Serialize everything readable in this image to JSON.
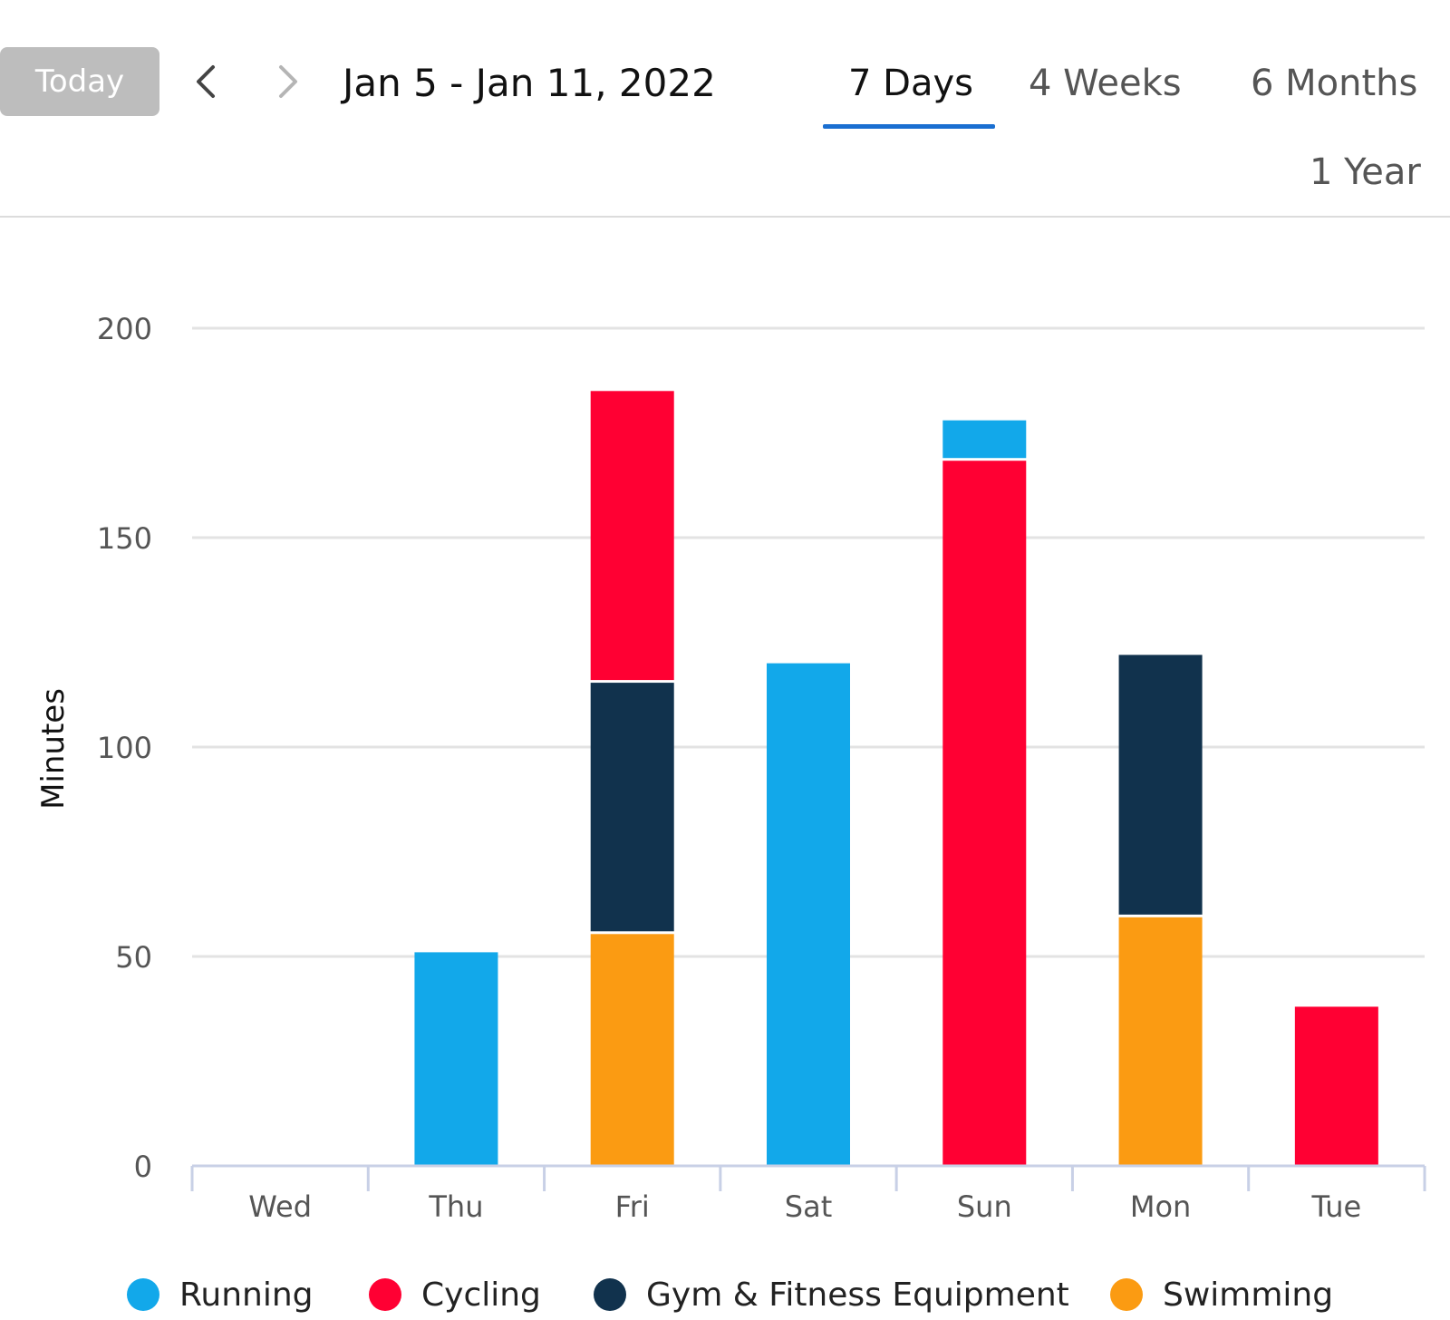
{
  "toolbar": {
    "today_label": "Today",
    "date_range": "Jan 5 - Jan 11, 2022",
    "prev_icon": "chevron-left-icon",
    "next_icon": "chevron-right-icon"
  },
  "tabs": [
    {
      "label": "7 Days",
      "active": true
    },
    {
      "label": "4 Weeks",
      "active": false
    },
    {
      "label": "6 Months",
      "active": false
    },
    {
      "label": "1 Year",
      "active": false
    }
  ],
  "colors": {
    "active_tab_underline": "#1a6fd1",
    "today_button": "#bdbdbd"
  },
  "chart_data": {
    "type": "bar",
    "stacked": true,
    "title": "",
    "xlabel": "",
    "ylabel": "Minutes",
    "ylim": [
      0,
      200
    ],
    "yticks": [
      0,
      50,
      100,
      150,
      200
    ],
    "grid": true,
    "legend_position": "bottom",
    "categories": [
      "Wed",
      "Thu",
      "Fri",
      "Sat",
      "Sun",
      "Mon",
      "Tue"
    ],
    "series": [
      {
        "name": "Swimming",
        "color": "#fb9b12",
        "values": [
          0,
          0,
          56,
          0,
          0,
          60,
          0
        ]
      },
      {
        "name": "Gym & Fitness Equipment",
        "color": "#11324d",
        "values": [
          0,
          0,
          60,
          0,
          0,
          62,
          0
        ]
      },
      {
        "name": "Cycling",
        "color": "#ff0033",
        "values": [
          0,
          0,
          69,
          0,
          169,
          0,
          38
        ]
      },
      {
        "name": "Running",
        "color": "#12a8ea",
        "values": [
          0,
          51,
          0,
          120,
          9,
          0,
          0
        ]
      }
    ],
    "legend_order": [
      "Running",
      "Cycling",
      "Gym & Fitness Equipment",
      "Swimming"
    ]
  }
}
